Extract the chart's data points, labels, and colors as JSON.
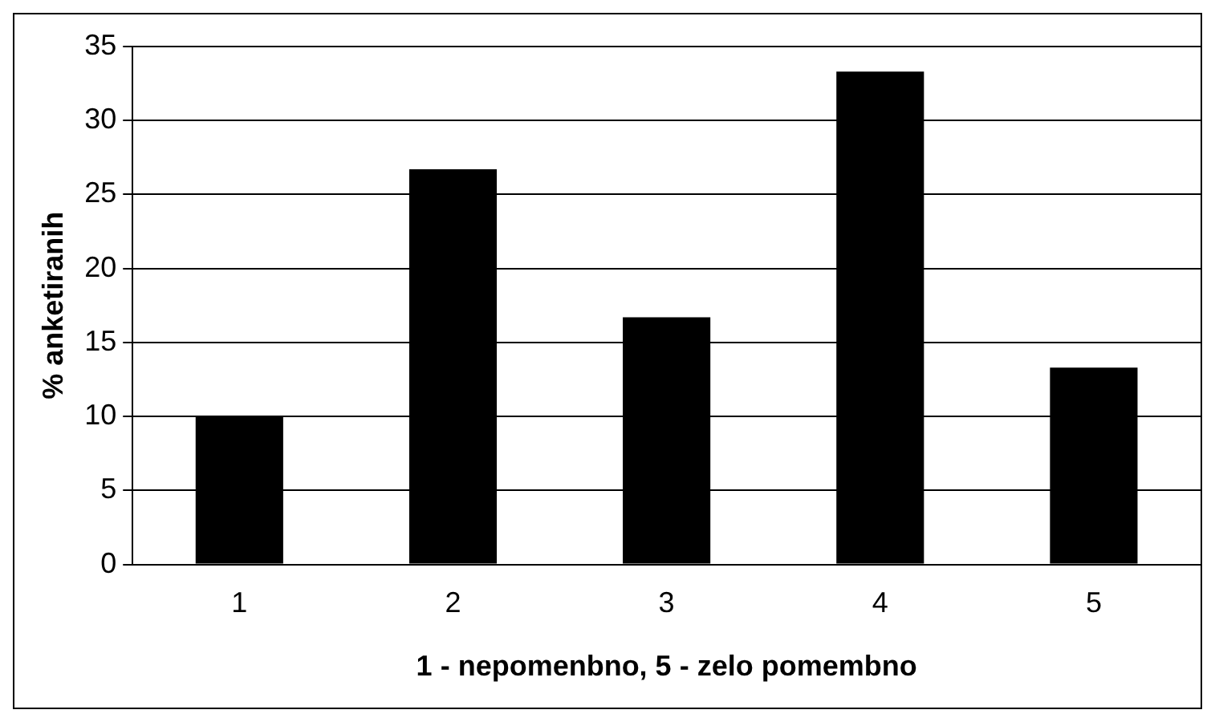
{
  "chart_data": {
    "type": "bar",
    "xlabel": "1 - nepomenbno, 5 - zelo pomembno",
    "ylabel": "% anketiranih",
    "categories": [
      "1",
      "2",
      "3",
      "4",
      "5"
    ],
    "values": [
      10,
      26.7,
      16.7,
      33.3,
      13.3
    ],
    "color": "#000000",
    "ylim": [
      0,
      35
    ],
    "yticks": [
      0,
      5,
      10,
      15,
      20,
      25,
      30,
      35
    ],
    "grid": "y",
    "legend": false
  }
}
